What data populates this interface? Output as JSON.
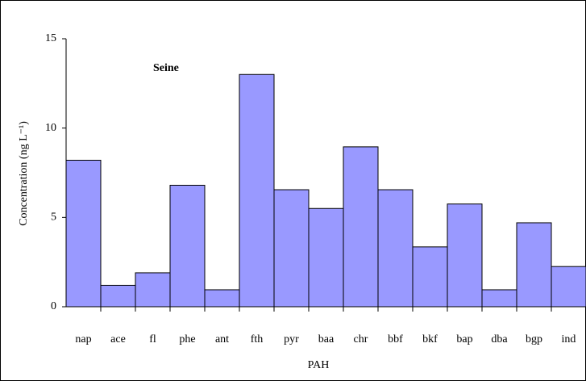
{
  "chart_data": {
    "type": "bar",
    "annotation": "Seine",
    "x_label": "PAH",
    "y_label": "Concentration (ng L⁻¹)",
    "categories": [
      "nap",
      "ace",
      "fl",
      "phe",
      "ant",
      "fth",
      "pyr",
      "baa",
      "chr",
      "bbf",
      "bkf",
      "bap",
      "dba",
      "bgp",
      "ind"
    ],
    "values": [
      8.2,
      1.2,
      1.9,
      6.8,
      0.95,
      13,
      6.55,
      5.5,
      8.95,
      6.55,
      3.35,
      5.75,
      0.95,
      4.7,
      2.25
    ],
    "color": "#9999ff",
    "ylim": [
      0,
      15
    ],
    "yticks": [
      0,
      5,
      10,
      15
    ],
    "grid": false
  }
}
